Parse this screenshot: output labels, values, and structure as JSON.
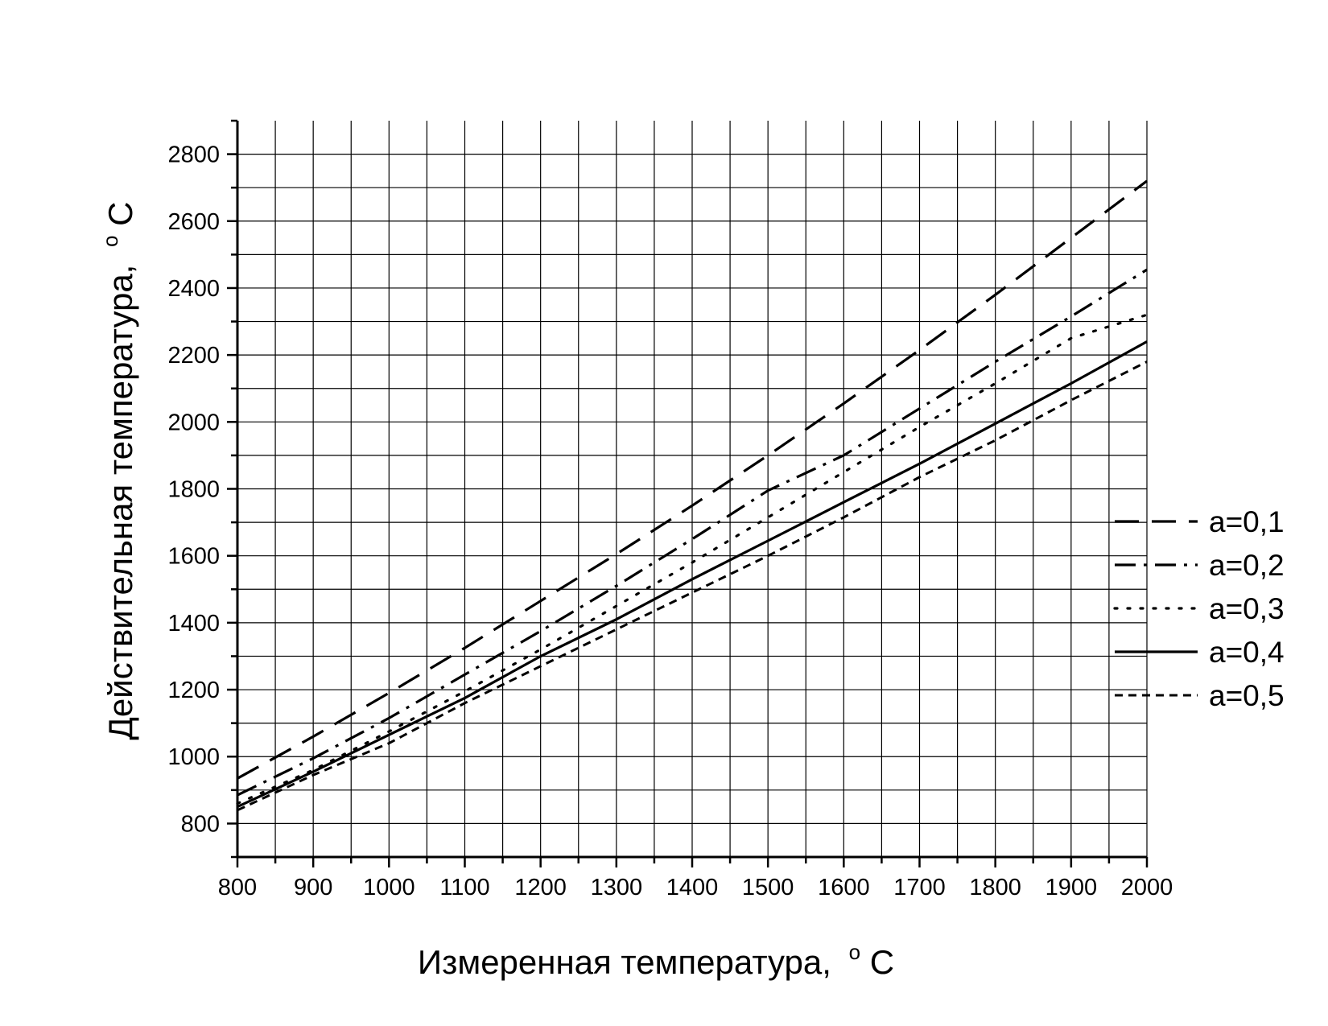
{
  "chart_data": {
    "type": "line",
    "xlabel": "Измеренная температура,",
    "xlabel_unit_sup": "o",
    "xlabel_unit": "C",
    "ylabel": "Действительная температура,",
    "ylabel_unit_sup": "o",
    "ylabel_unit": "C",
    "xlim": [
      800,
      2000
    ],
    "ylim": [
      700,
      2900
    ],
    "x_ticks": [
      "800",
      "900",
      "1000",
      "1100",
      "1200",
      "1300",
      "1400",
      "1500",
      "1600",
      "1700",
      "1800",
      "1900",
      "2000"
    ],
    "y_ticks": [
      "800",
      "1000",
      "1200",
      "1400",
      "1600",
      "1800",
      "2000",
      "2200",
      "2400",
      "2600",
      "2800"
    ],
    "grid": true,
    "legend_position": "right",
    "x": [
      800,
      900,
      1000,
      1100,
      1200,
      1300,
      1400,
      1500,
      1600,
      1700,
      1800,
      1900,
      2000
    ],
    "series": [
      {
        "name": "a=0,1",
        "style": "dash",
        "values": [
          935,
          1060,
          1190,
          1325,
          1465,
          1605,
          1750,
          1900,
          2055,
          2215,
          2380,
          2550,
          2720
        ]
      },
      {
        "name": "a=0,2",
        "style": "dashdot",
        "values": [
          885,
          995,
          1115,
          1245,
          1375,
          1510,
          1650,
          1795,
          1900,
          2040,
          2180,
          2315,
          2455
        ]
      },
      {
        "name": "a=0,3",
        "style": "dot",
        "values": [
          860,
          960,
          1075,
          1195,
          1320,
          1450,
          1580,
          1715,
          1850,
          1985,
          2115,
          2250,
          2320
        ]
      },
      {
        "name": "a=0,4",
        "style": "solid",
        "values": [
          850,
          955,
          1065,
          1175,
          1300,
          1410,
          1530,
          1645,
          1760,
          1875,
          1995,
          2115,
          2240
        ]
      },
      {
        "name": "a=0,5",
        "style": "shortdash",
        "values": [
          840,
          945,
          1040,
          1160,
          1270,
          1380,
          1490,
          1600,
          1715,
          1835,
          1945,
          2065,
          2180
        ]
      }
    ]
  }
}
